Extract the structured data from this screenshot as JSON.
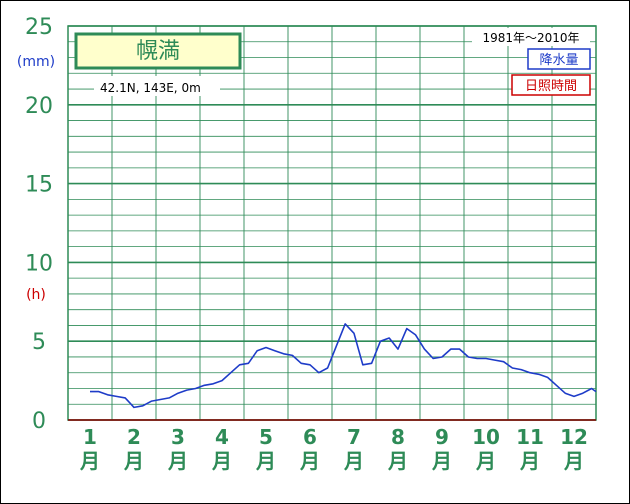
{
  "chart_data": {
    "type": "line",
    "title": "幌満",
    "location": "42.1N,  143E,  0m",
    "period": "1981年～2010年",
    "legend": [
      {
        "label": "降水量",
        "color": "#1e3cc8"
      },
      {
        "label": "日照時間",
        "color": "#cc0000"
      }
    ],
    "y_unit_precip": "(mm)",
    "y_unit_sunshine": "(h)",
    "ylim": [
      0,
      25
    ],
    "yticks": [
      "0",
      "5",
      "10",
      "15",
      "20",
      "25"
    ],
    "months": [
      "1",
      "2",
      "3",
      "4",
      "5",
      "6",
      "7",
      "8",
      "9",
      "10",
      "11",
      "12"
    ],
    "month_suffix": "月",
    "grid": true,
    "series": [
      {
        "name": "降水量",
        "color": "#1e3cc8",
        "x": [
          1.0,
          1.2,
          1.4,
          1.6,
          1.8,
          2.0,
          2.2,
          2.4,
          2.6,
          2.8,
          3.0,
          3.2,
          3.4,
          3.6,
          3.8,
          4.0,
          4.2,
          4.4,
          4.6,
          4.8,
          5.0,
          5.2,
          5.4,
          5.6,
          5.8,
          6.0,
          6.2,
          6.4,
          6.6,
          6.8,
          7.0,
          7.2,
          7.4,
          7.6,
          7.8,
          8.0,
          8.2,
          8.4,
          8.6,
          8.8,
          9.0,
          9.2,
          9.4,
          9.6,
          9.8,
          10.0,
          10.2,
          10.4,
          10.6,
          10.8,
          11.0,
          11.2,
          11.4,
          11.6,
          11.8,
          12.0,
          12.2,
          12.4,
          12.6,
          12.8
        ],
        "values": [
          1.8,
          1.8,
          1.6,
          1.5,
          1.4,
          0.8,
          0.9,
          1.2,
          1.3,
          1.4,
          1.7,
          1.9,
          2.0,
          2.2,
          2.3,
          2.5,
          3.0,
          3.5,
          3.6,
          4.4,
          4.6,
          4.4,
          4.2,
          4.1,
          3.6,
          3.5,
          3.0,
          3.3,
          4.7,
          6.1,
          5.5,
          3.5,
          3.6,
          5.0,
          5.2,
          4.5,
          5.8,
          5.4,
          4.5,
          3.9,
          4.0,
          4.5,
          4.5,
          4.0,
          3.9,
          3.9,
          3.8,
          3.7,
          3.3,
          3.2,
          3.0,
          2.9,
          2.7,
          2.2,
          1.7,
          1.5,
          1.7,
          2.0,
          1.8,
          1.8
        ]
      }
    ]
  }
}
